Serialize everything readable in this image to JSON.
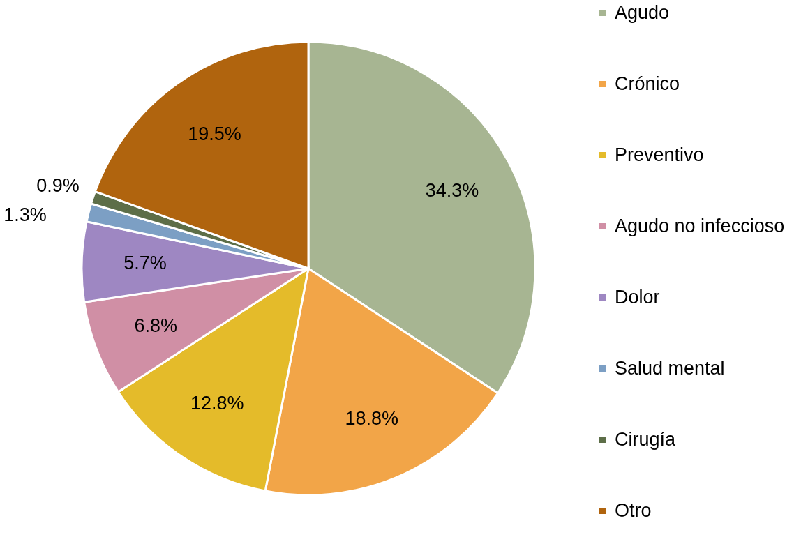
{
  "chart_data": {
    "type": "pie",
    "categories": [
      "Agudo",
      "Crónico",
      "Preventivo",
      "Agudo no infeccioso",
      "Dolor",
      "Salud mental",
      "Cirugía",
      "Otro"
    ],
    "values": [
      34.3,
      18.8,
      12.8,
      6.8,
      5.7,
      1.3,
      0.9,
      19.5
    ],
    "colors": [
      "#a7b592",
      "#f2a548",
      "#e4bb2a",
      "#d08fa5",
      "#9e87c2",
      "#7c9fc4",
      "#5d6e48",
      "#b0640e"
    ],
    "value_labels": [
      "34.3%",
      "18.8%",
      "12.8%",
      "6.8%",
      "5.7%",
      "1.3%",
      "0.9%",
      "19.5%"
    ],
    "legend": "right"
  }
}
